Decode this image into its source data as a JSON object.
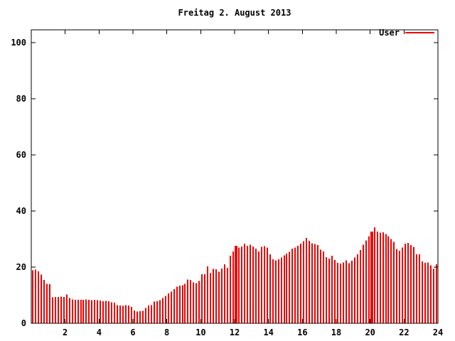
{
  "page": {
    "background": "#ffffff",
    "foreground": "#000000"
  },
  "chart_data": {
    "type": "bar",
    "title": "Freitag 2. August 2013",
    "xlabel": "",
    "ylabel": "",
    "xlim": [
      0,
      24
    ],
    "ylim": [
      0,
      104.5
    ],
    "x_ticks": [
      2,
      4,
      6,
      8,
      10,
      12,
      14,
      16,
      18,
      20,
      22,
      24
    ],
    "y_ticks": [
      0,
      20,
      40,
      60,
      80,
      100
    ],
    "grid": false,
    "legend_position": "top-right-inside",
    "sample_interval_minutes": 10,
    "series": [
      {
        "name": "User",
        "color": "#ee0000",
        "start_hour": 0,
        "wide_bar_indices": [
          72,
          120
        ],
        "values": [
          18.8,
          19.1,
          18.5,
          17.3,
          15.4,
          14.0,
          13.9,
          9.2,
          9.4,
          9.3,
          9.5,
          9.4,
          10.2,
          9.0,
          8.5,
          8.4,
          8.3,
          8.4,
          8.3,
          8.5,
          8.4,
          8.2,
          8.3,
          8.2,
          8.1,
          7.9,
          8.0,
          7.8,
          7.5,
          7.3,
          6.4,
          6.3,
          6.2,
          6.4,
          6.3,
          5.8,
          4.5,
          4.2,
          4.3,
          4.4,
          5.4,
          6.3,
          6.5,
          7.7,
          7.9,
          8.2,
          9.0,
          9.8,
          10.6,
          11.3,
          12.1,
          13.0,
          13.4,
          13.6,
          14.1,
          15.5,
          15.4,
          14.5,
          14.3,
          15.0,
          17.5,
          17.4,
          20.3,
          17.8,
          19.3,
          19.2,
          18.4,
          19.5,
          21.0,
          19.7,
          24.0,
          25.5,
          27.6,
          27.0,
          27.3,
          28.3,
          27.6,
          28.0,
          27.3,
          26.6,
          25.6,
          27.2,
          27.5,
          27.0,
          24.6,
          22.8,
          22.4,
          22.8,
          23.4,
          24.2,
          24.8,
          25.4,
          26.6,
          27.0,
          27.6,
          28.4,
          29.2,
          30.4,
          29.3,
          28.5,
          28.2,
          27.8,
          26.2,
          25.5,
          23.5,
          23.0,
          24.0,
          22.5,
          21.5,
          21.3,
          21.6,
          22.4,
          21.4,
          22.3,
          23.4,
          24.5,
          26.0,
          28.0,
          29.5,
          31.0,
          32.6,
          34.2,
          32.6,
          32.2,
          32.4,
          31.8,
          31.0,
          30.0,
          29.0,
          26.5,
          25.8,
          27.0,
          28.4,
          28.6,
          27.8,
          27.2,
          24.6,
          24.5,
          22.0,
          21.5,
          21.6,
          20.6,
          19.4,
          21.0
        ]
      }
    ]
  }
}
